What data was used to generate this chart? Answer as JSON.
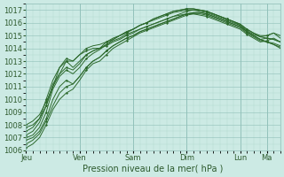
{
  "background_color": "#cceae4",
  "plot_background": "#cceae4",
  "grid_color_minor": "#b0d8d0",
  "grid_color_major": "#90bfb8",
  "line_color": "#2d6a2d",
  "ylim": [
    1006,
    1017.5
  ],
  "yticks": [
    1006,
    1007,
    1008,
    1009,
    1010,
    1011,
    1012,
    1013,
    1014,
    1015,
    1016,
    1017
  ],
  "xlabel": "Pression niveau de la mer( hPa )",
  "xlabel_fontsize": 7,
  "tick_fontsize": 6,
  "day_labels": [
    "Jeu",
    "Ven",
    "Sam",
    "Dim",
    "Lun",
    "Ma"
  ],
  "day_positions": [
    0,
    24,
    48,
    72,
    96,
    108
  ],
  "xlim_max": 114,
  "series": [
    {
      "x": [
        0,
        3,
        6,
        9,
        12,
        15,
        18,
        21,
        24,
        27,
        30,
        33,
        36,
        39,
        42,
        45,
        48,
        51,
        54,
        57,
        60,
        63,
        66,
        69,
        72,
        75,
        78,
        81,
        84,
        87,
        90,
        93,
        96,
        99,
        102,
        105,
        108,
        111,
        114
      ],
      "y": [
        1007.2,
        1007.5,
        1008.2,
        1009.5,
        1011.2,
        1012.0,
        1012.5,
        1012.3,
        1012.8,
        1013.5,
        1013.8,
        1014.0,
        1014.5,
        1014.8,
        1015.0,
        1015.3,
        1015.5,
        1015.8,
        1016.0,
        1016.3,
        1016.5,
        1016.7,
        1016.9,
        1017.0,
        1017.1,
        1017.1,
        1017.0,
        1016.9,
        1016.7,
        1016.5,
        1016.3,
        1016.1,
        1015.9,
        1015.5,
        1015.2,
        1015.0,
        1015.0,
        1015.2,
        1015.0
      ]
    },
    {
      "x": [
        0,
        3,
        6,
        9,
        12,
        15,
        18,
        21,
        24,
        27,
        30,
        33,
        36,
        39,
        42,
        45,
        48,
        51,
        54,
        57,
        60,
        63,
        66,
        69,
        72,
        75,
        78,
        81,
        84,
        87,
        90,
        93,
        96,
        99,
        102,
        105,
        108,
        111,
        114
      ],
      "y": [
        1007.0,
        1007.2,
        1007.8,
        1009.0,
        1010.8,
        1011.8,
        1012.3,
        1012.0,
        1012.5,
        1013.2,
        1013.6,
        1013.9,
        1014.3,
        1014.7,
        1015.0,
        1015.3,
        1015.5,
        1015.8,
        1016.0,
        1016.3,
        1016.5,
        1016.7,
        1016.9,
        1017.0,
        1017.1,
        1017.1,
        1017.0,
        1016.9,
        1016.7,
        1016.5,
        1016.3,
        1016.1,
        1015.8,
        1015.4,
        1015.1,
        1014.9,
        1015.0,
        1015.2,
        1014.8
      ]
    },
    {
      "x": [
        0,
        3,
        6,
        9,
        12,
        15,
        18,
        21,
        24,
        27,
        30,
        33,
        36,
        39,
        42,
        45,
        48,
        51,
        54,
        57,
        60,
        63,
        66,
        69,
        72,
        75,
        78,
        81,
        84,
        87,
        90,
        93,
        96,
        99,
        102,
        105,
        108,
        111,
        114
      ],
      "y": [
        1008.0,
        1008.3,
        1008.8,
        1009.8,
        1011.0,
        1012.5,
        1013.2,
        1013.0,
        1013.5,
        1014.0,
        1014.2,
        1014.3,
        1014.5,
        1014.7,
        1015.0,
        1015.2,
        1015.5,
        1015.8,
        1016.0,
        1016.2,
        1016.4,
        1016.6,
        1016.8,
        1016.9,
        1017.0,
        1017.0,
        1016.9,
        1016.8,
        1016.6,
        1016.4,
        1016.2,
        1016.0,
        1015.8,
        1015.3,
        1015.0,
        1014.7,
        1014.8,
        1014.7,
        1014.5
      ]
    },
    {
      "x": [
        0,
        3,
        6,
        9,
        12,
        15,
        18,
        21,
        24,
        27,
        30,
        33,
        36,
        39,
        42,
        45,
        48,
        51,
        54,
        57,
        60,
        63,
        66,
        69,
        72,
        75,
        78,
        81,
        84,
        87,
        90,
        93,
        96,
        99,
        102,
        105,
        108,
        111,
        114
      ],
      "y": [
        1007.5,
        1007.8,
        1008.5,
        1010.0,
        1011.5,
        1012.5,
        1013.0,
        1012.5,
        1013.0,
        1013.5,
        1013.8,
        1014.0,
        1014.3,
        1014.6,
        1014.8,
        1015.1,
        1015.3,
        1015.5,
        1015.7,
        1015.9,
        1016.1,
        1016.3,
        1016.5,
        1016.6,
        1016.7,
        1016.7,
        1016.6,
        1016.5,
        1016.3,
        1016.1,
        1015.9,
        1015.7,
        1015.5,
        1015.1,
        1014.8,
        1014.5,
        1014.6,
        1014.8,
        1014.5
      ]
    },
    {
      "x": [
        0,
        3,
        6,
        9,
        12,
        15,
        18,
        21,
        24,
        27,
        30,
        33,
        36,
        39,
        42,
        45,
        48,
        51,
        54,
        57,
        60,
        63,
        66,
        69,
        72,
        75,
        78,
        81,
        84,
        87,
        90,
        93,
        96,
        99,
        102,
        105,
        108,
        111,
        114
      ],
      "y": [
        1006.8,
        1007.0,
        1007.5,
        1008.5,
        1010.0,
        1011.0,
        1011.5,
        1011.2,
        1011.8,
        1012.5,
        1013.0,
        1013.3,
        1013.8,
        1014.2,
        1014.5,
        1014.8,
        1015.0,
        1015.3,
        1015.5,
        1015.7,
        1015.9,
        1016.1,
        1016.3,
        1016.5,
        1016.7,
        1016.8,
        1016.8,
        1016.7,
        1016.5,
        1016.3,
        1016.1,
        1015.9,
        1015.7,
        1015.3,
        1015.0,
        1014.7,
        1014.5,
        1014.4,
        1014.2
      ]
    },
    {
      "x": [
        0,
        3,
        6,
        9,
        12,
        15,
        18,
        21,
        24,
        27,
        30,
        33,
        36,
        39,
        42,
        45,
        48,
        51,
        54,
        57,
        60,
        63,
        66,
        69,
        72,
        75,
        78,
        81,
        84,
        87,
        90,
        93,
        96,
        99,
        102,
        105,
        108,
        111,
        114
      ],
      "y": [
        1007.8,
        1008.0,
        1008.5,
        1009.5,
        1011.0,
        1012.0,
        1013.0,
        1013.0,
        1013.5,
        1013.8,
        1014.0,
        1014.0,
        1014.2,
        1014.5,
        1014.7,
        1015.0,
        1015.2,
        1015.5,
        1015.7,
        1015.9,
        1016.1,
        1016.3,
        1016.5,
        1016.7,
        1016.9,
        1017.0,
        1017.0,
        1016.9,
        1016.7,
        1016.5,
        1016.3,
        1016.1,
        1015.9,
        1015.5,
        1015.2,
        1014.9,
        1014.8,
        1014.7,
        1014.5
      ]
    },
    {
      "x": [
        0,
        3,
        6,
        9,
        12,
        15,
        18,
        21,
        24,
        27,
        30,
        33,
        36,
        39,
        42,
        45,
        48,
        51,
        54,
        57,
        60,
        63,
        66,
        69,
        72,
        75,
        78,
        81,
        84,
        87,
        90,
        93,
        96,
        99,
        102,
        105,
        108,
        111,
        114
      ],
      "y": [
        1006.5,
        1006.8,
        1007.3,
        1008.3,
        1009.5,
        1010.5,
        1011.0,
        1011.2,
        1011.8,
        1012.5,
        1013.0,
        1013.3,
        1013.8,
        1014.2,
        1014.5,
        1014.8,
        1015.0,
        1015.3,
        1015.5,
        1015.7,
        1015.9,
        1016.1,
        1016.3,
        1016.5,
        1016.7,
        1016.8,
        1016.8,
        1016.7,
        1016.5,
        1016.3,
        1016.1,
        1015.9,
        1015.7,
        1015.3,
        1015.0,
        1014.7,
        1014.5,
        1014.3,
        1014.1
      ]
    },
    {
      "x": [
        0,
        3,
        6,
        9,
        12,
        15,
        18,
        21,
        24,
        27,
        30,
        33,
        36,
        39,
        42,
        45,
        48,
        51,
        54,
        57,
        60,
        63,
        66,
        69,
        72,
        75,
        78,
        81,
        84,
        87,
        90,
        93,
        96,
        99,
        102,
        105,
        108,
        111,
        114
      ],
      "y": [
        1006.2,
        1006.5,
        1007.0,
        1008.0,
        1009.2,
        1010.0,
        1010.5,
        1010.8,
        1011.5,
        1012.3,
        1012.8,
        1013.0,
        1013.5,
        1014.0,
        1014.3,
        1014.6,
        1014.9,
        1015.2,
        1015.4,
        1015.6,
        1015.8,
        1016.0,
        1016.2,
        1016.4,
        1016.6,
        1016.7,
        1016.7,
        1016.6,
        1016.4,
        1016.2,
        1016.0,
        1015.8,
        1015.6,
        1015.2,
        1014.9,
        1014.6,
        1014.5,
        1014.3,
        1014.0
      ]
    }
  ]
}
